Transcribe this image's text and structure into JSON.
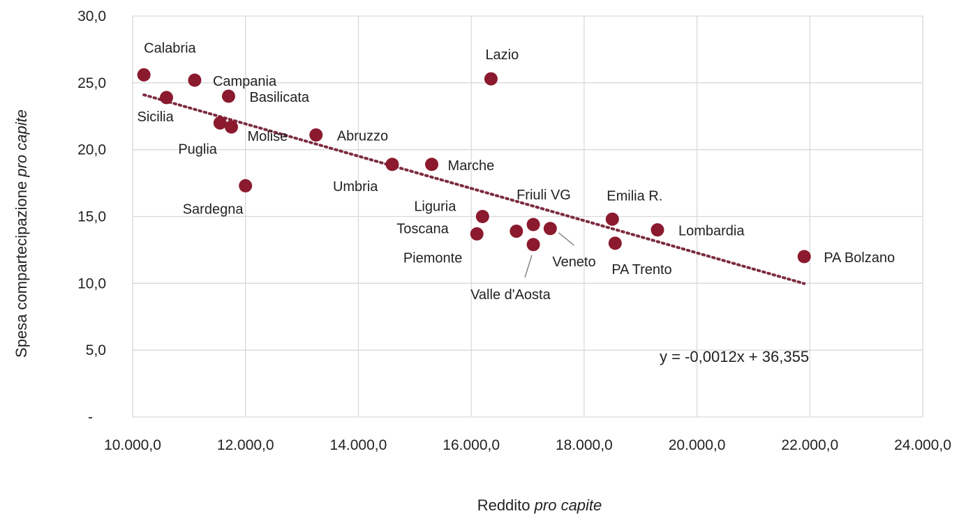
{
  "chart_data": {
    "type": "scatter",
    "xlabel": {
      "prefix": "Reddito ",
      "italic": "pro capite"
    },
    "ylabel": {
      "prefix": "Spesa compartecipazione ",
      "italic": "pro capite"
    },
    "xlim": [
      10000,
      24000
    ],
    "ylim": [
      0,
      30
    ],
    "x_ticks": [
      10000,
      12000,
      14000,
      16000,
      18000,
      20000,
      22000,
      24000
    ],
    "x_tick_labels": [
      "10.000,0",
      "12.000,0",
      "14.000,0",
      "16.000,0",
      "18.000,0",
      "20.000,0",
      "22.000,0",
      "24.000,0"
    ],
    "y_ticks": [
      0,
      5,
      10,
      15,
      20,
      25,
      30
    ],
    "y_tick_labels": [
      "-",
      "5,0",
      "10,0",
      "15,0",
      "20,0",
      "25,0",
      "30,0"
    ],
    "grid": true,
    "marker_color": "#8B1A2E",
    "trend_color": "#7B2B3E",
    "points": [
      {
        "name": "Calabria",
        "x": 10200,
        "y": 25.6
      },
      {
        "name": "Sicilia",
        "x": 10600,
        "y": 23.9
      },
      {
        "name": "Campania",
        "x": 11100,
        "y": 25.2
      },
      {
        "name": "Basilicata",
        "x": 11700,
        "y": 24.0
      },
      {
        "name": "Puglia",
        "x": 11550,
        "y": 22.0
      },
      {
        "name": "Molise",
        "x": 11750,
        "y": 21.7
      },
      {
        "name": "Sardegna",
        "x": 12000,
        "y": 17.3
      },
      {
        "name": "Abruzzo",
        "x": 13250,
        "y": 21.1
      },
      {
        "name": "Umbria",
        "x": 14600,
        "y": 18.9
      },
      {
        "name": "Marche",
        "x": 15300,
        "y": 18.9
      },
      {
        "name": "Lazio",
        "x": 16350,
        "y": 25.3
      },
      {
        "name": "Liguria",
        "x": 16200,
        "y": 15.0
      },
      {
        "name": "Toscana",
        "x": 16100,
        "y": 13.7
      },
      {
        "name": "Piemonte",
        "x": 16800,
        "y": 13.9
      },
      {
        "name": "Friuli VG",
        "x": 17100,
        "y": 14.4
      },
      {
        "name": "Valle d'Aosta",
        "x": 17100,
        "y": 12.9
      },
      {
        "name": "Veneto",
        "x": 17400,
        "y": 14.1
      },
      {
        "name": "Emilia R.",
        "x": 18500,
        "y": 14.8
      },
      {
        "name": "PA Trento",
        "x": 18550,
        "y": 13.0
      },
      {
        "name": "Lombardia",
        "x": 19300,
        "y": 14.0
      },
      {
        "name": "PA Bolzano",
        "x": 21900,
        "y": 12.0
      }
    ],
    "trendline": {
      "x_start": 10200,
      "x_end": 21900
    },
    "equation": "y = -0,0012x + 36,355"
  }
}
